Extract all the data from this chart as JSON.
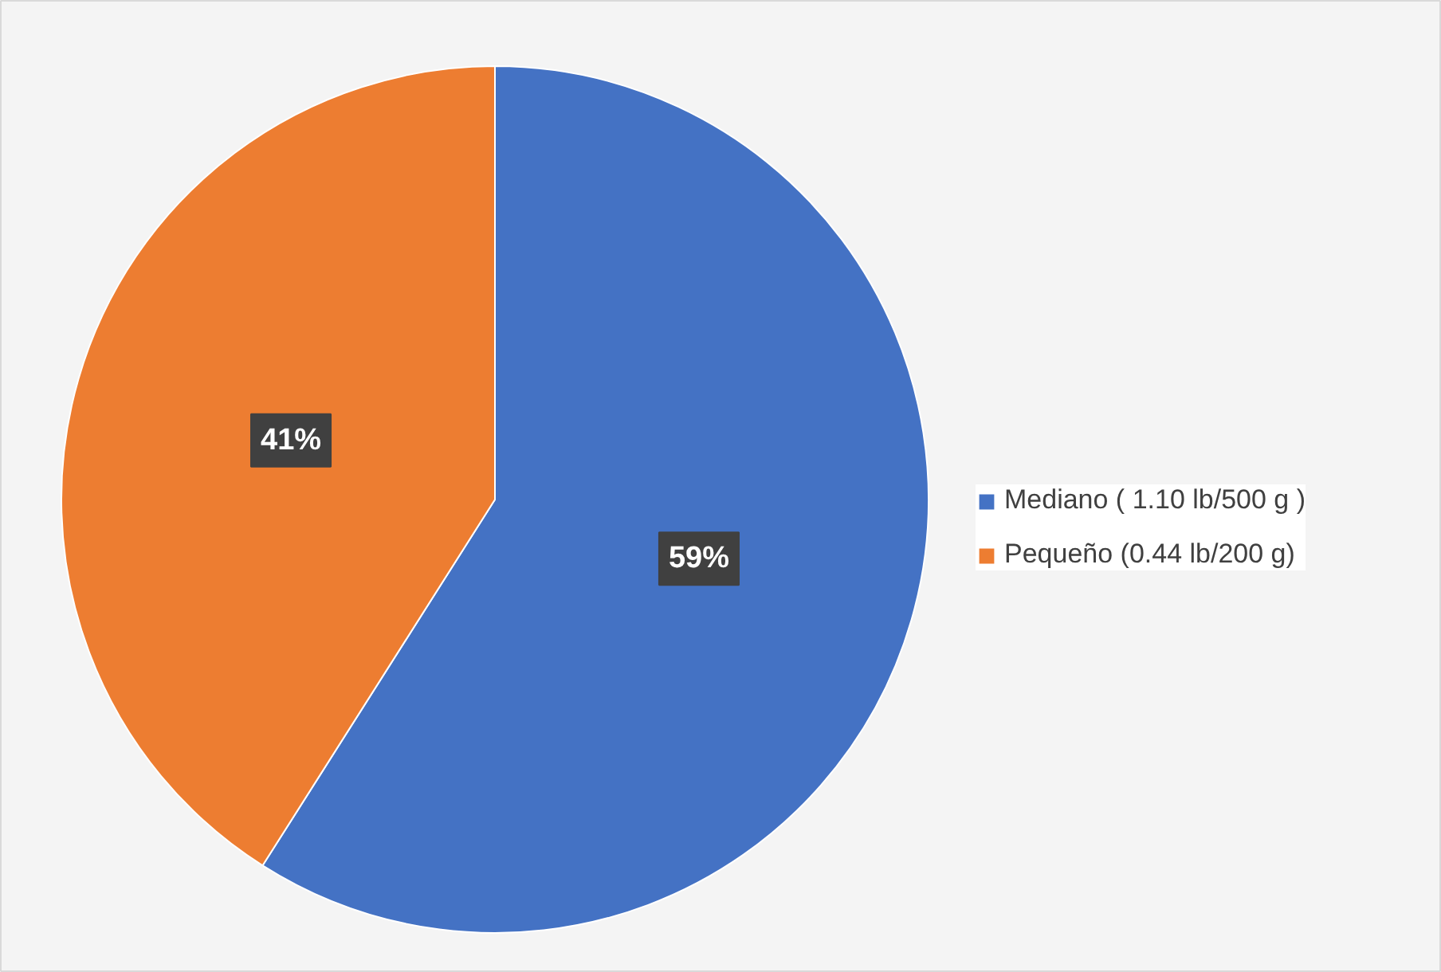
{
  "chart_data": {
    "type": "pie",
    "categories": [
      "Mediano ( 1.10 lb/500 g )",
      "Pequeño (0.44 lb/200 g)"
    ],
    "values": [
      59,
      41
    ],
    "colors": [
      "#4472c4",
      "#ed7d31"
    ],
    "value_labels": [
      "59%",
      "41%"
    ],
    "legend": "right"
  }
}
